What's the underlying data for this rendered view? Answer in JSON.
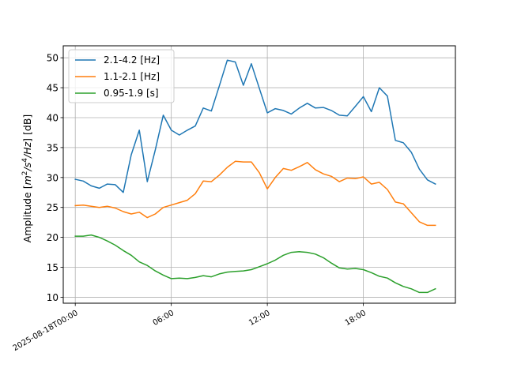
{
  "chart_data": {
    "type": "line",
    "xlabel": "",
    "ylabel": {
      "prefix": "Amplitude [",
      "m": "m",
      "m_sup": "2",
      "s": "/s",
      "s_sup": "4",
      "hz": "/Hz",
      "suffix": "] [dB]"
    },
    "x_ticks": [
      {
        "hour": 0,
        "label": "2025-08-18T00:00"
      },
      {
        "hour": 6,
        "label": "06:00"
      },
      {
        "hour": 12,
        "label": "12:00"
      },
      {
        "hour": 18,
        "label": "18:00"
      }
    ],
    "xlim": [
      -0.75,
      23.75
    ],
    "ylim": [
      9,
      52
    ],
    "y_ticks": [
      10,
      15,
      20,
      25,
      30,
      35,
      40,
      45,
      50
    ],
    "grid": true,
    "legend_position": "top-left",
    "x": [
      0,
      0.5,
      1,
      1.5,
      2,
      2.5,
      3,
      3.5,
      4,
      4.5,
      5,
      5.5,
      6,
      6.5,
      7,
      7.5,
      8,
      8.5,
      9,
      9.5,
      10,
      10.5,
      11,
      11.5,
      12,
      12.5,
      13,
      13.5,
      14,
      14.5,
      15,
      15.5,
      16,
      16.5,
      17,
      17.5,
      18,
      18.5,
      19,
      19.5,
      20,
      20.5,
      21,
      21.5,
      22,
      22.5
    ],
    "series": [
      {
        "name": "2.1-4.2 [Hz]",
        "color": "#1f77b4",
        "values": [
          29.7,
          29.4,
          28.6,
          28.2,
          28.9,
          28.8,
          27.5,
          33.8,
          37.9,
          29.3,
          34.6,
          40.4,
          37.9,
          37.1,
          37.9,
          38.6,
          41.6,
          41.1,
          45.3,
          49.6,
          49.3,
          45.4,
          49.0,
          44.9,
          40.8,
          41.5,
          41.2,
          40.6,
          41.6,
          42.4,
          41.6,
          41.7,
          41.2,
          40.4,
          40.3,
          41.9,
          43.5,
          41.0,
          45.0,
          43.6,
          36.2,
          35.8,
          34.2,
          31.4,
          29.6,
          28.9
        ]
      },
      {
        "name": "1.1-2.1 [Hz]",
        "color": "#ff7f0e",
        "values": [
          25.3,
          25.4,
          25.2,
          25.0,
          25.2,
          24.9,
          24.3,
          23.9,
          24.2,
          23.3,
          23.9,
          25.0,
          25.4,
          25.8,
          26.2,
          27.3,
          29.4,
          29.3,
          30.4,
          31.7,
          32.7,
          32.6,
          32.6,
          30.8,
          28.1,
          30.0,
          31.5,
          31.2,
          31.8,
          32.5,
          31.3,
          30.6,
          30.2,
          29.3,
          29.9,
          29.8,
          30.1,
          28.9,
          29.2,
          28.0,
          25.9,
          25.6,
          24.1,
          22.6,
          22.0,
          22.0
        ]
      },
      {
        "name": "0.95-1.9 [s]",
        "color": "#2ca02c",
        "values": [
          20.2,
          20.2,
          20.4,
          20.0,
          19.4,
          18.7,
          17.8,
          17.0,
          15.9,
          15.3,
          14.4,
          13.7,
          13.1,
          13.2,
          13.1,
          13.3,
          13.6,
          13.4,
          13.9,
          14.2,
          14.3,
          14.4,
          14.6,
          15.1,
          15.6,
          16.2,
          17.0,
          17.5,
          17.6,
          17.5,
          17.2,
          16.6,
          15.7,
          14.9,
          14.7,
          14.8,
          14.6,
          14.1,
          13.5,
          13.2,
          12.4,
          11.8,
          11.4,
          10.8,
          10.8,
          11.4
        ]
      }
    ]
  }
}
